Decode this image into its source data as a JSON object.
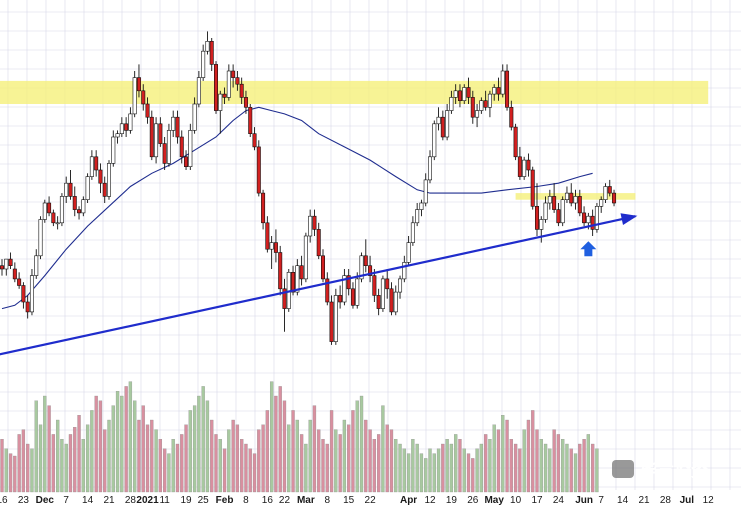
{
  "chart_data": {
    "type": "candlestick",
    "title": "",
    "xlabel": "",
    "ylabel": "",
    "grid": true,
    "legend": "none",
    "watermark": "毕肯投资",
    "colors": {
      "up": "#ffffff",
      "down": "#d22020",
      "candle_outline": "#111111",
      "ma_line": "#1f2d8f",
      "trendline": "#1f2ccc",
      "resistance_zone": "#f5f07a",
      "volume_up": "#a8c9a0",
      "volume_down": "#d890a0",
      "grid": "#d8d8e8",
      "marker_arrow": "#1f5fe0"
    },
    "x_axis_labels": [
      {
        "text": "16",
        "i": 0
      },
      {
        "text": "23",
        "i": 5
      },
      {
        "text": "Dec",
        "i": 10,
        "bold": true
      },
      {
        "text": "7",
        "i": 15
      },
      {
        "text": "14",
        "i": 20
      },
      {
        "text": "21",
        "i": 25
      },
      {
        "text": "28",
        "i": 30
      },
      {
        "text": "2021",
        "i": 34,
        "bold": true
      },
      {
        "text": "11",
        "i": 38
      },
      {
        "text": "19",
        "i": 43
      },
      {
        "text": "25",
        "i": 47
      },
      {
        "text": "Feb",
        "i": 52,
        "bold": true
      },
      {
        "text": "8",
        "i": 57
      },
      {
        "text": "16",
        "i": 62
      },
      {
        "text": "22",
        "i": 66
      },
      {
        "text": "Mar",
        "i": 71,
        "bold": true
      },
      {
        "text": "8",
        "i": 76
      },
      {
        "text": "15",
        "i": 81
      },
      {
        "text": "22",
        "i": 86
      },
      {
        "text": "Apr",
        "i": 95,
        "bold": true
      },
      {
        "text": "12",
        "i": 100
      },
      {
        "text": "19",
        "i": 105
      },
      {
        "text": "26",
        "i": 110
      },
      {
        "text": "May",
        "i": 115,
        "bold": true
      },
      {
        "text": "10",
        "i": 120
      },
      {
        "text": "17",
        "i": 125
      },
      {
        "text": "24",
        "i": 130
      },
      {
        "text": "Jun",
        "i": 136,
        "bold": true
      },
      {
        "text": "7",
        "i": 140
      },
      {
        "text": "14",
        "i": 145
      },
      {
        "text": "21",
        "i": 150
      },
      {
        "text": "28",
        "i": 155
      },
      {
        "text": "Jul",
        "i": 160,
        "bold": true
      },
      {
        "text": "12",
        "i": 165
      }
    ],
    "price_range": [
      0,
      100
    ],
    "volume_range": [
      0,
      100
    ],
    "candles": [
      [
        31,
        33,
        28,
        30
      ],
      [
        30,
        33,
        28,
        33
      ],
      [
        33,
        35,
        30,
        31
      ],
      [
        30,
        32,
        26,
        27
      ],
      [
        27,
        29,
        24,
        25
      ],
      [
        25,
        26,
        18,
        20
      ],
      [
        20,
        22,
        15,
        17
      ],
      [
        17,
        30,
        16,
        28
      ],
      [
        28,
        36,
        27,
        34
      ],
      [
        34,
        46,
        33,
        45
      ],
      [
        45,
        51,
        44,
        50
      ],
      [
        50,
        52,
        46,
        47
      ],
      [
        47,
        48,
        43,
        44
      ],
      [
        44,
        46,
        42,
        44
      ],
      [
        44,
        53,
        43,
        52
      ],
      [
        52,
        58,
        50,
        56
      ],
      [
        56,
        60,
        51,
        52
      ],
      [
        52,
        55,
        46,
        48
      ],
      [
        48,
        49,
        45,
        47
      ],
      [
        47,
        52,
        46,
        51
      ],
      [
        51,
        59,
        50,
        58
      ],
      [
        58,
        66,
        57,
        64
      ],
      [
        64,
        66,
        58,
        60
      ],
      [
        60,
        62,
        53,
        56
      ],
      [
        56,
        58,
        50,
        52
      ],
      [
        52,
        63,
        51,
        62
      ],
      [
        62,
        72,
        61,
        70
      ],
      [
        70,
        72,
        68,
        71
      ],
      [
        71,
        76,
        70,
        74
      ],
      [
        74,
        76,
        70,
        72
      ],
      [
        72,
        79,
        71,
        77
      ],
      [
        77,
        90,
        76,
        88
      ],
      [
        88,
        92,
        82,
        84
      ],
      [
        84,
        86,
        78,
        80
      ],
      [
        80,
        82,
        74,
        76
      ],
      [
        76,
        78,
        63,
        64
      ],
      [
        64,
        76,
        62,
        74
      ],
      [
        74,
        76,
        67,
        68
      ],
      [
        68,
        70,
        60,
        62
      ],
      [
        62,
        74,
        61,
        72
      ],
      [
        72,
        78,
        70,
        76
      ],
      [
        76,
        78,
        68,
        70
      ],
      [
        70,
        72,
        62,
        64
      ],
      [
        64,
        66,
        60,
        61
      ],
      [
        61,
        74,
        60,
        72
      ],
      [
        72,
        82,
        71,
        80
      ],
      [
        80,
        90,
        79,
        88
      ],
      [
        88,
        98,
        87,
        96
      ],
      [
        96,
        102,
        95,
        99
      ],
      [
        99,
        100,
        90,
        92
      ],
      [
        92,
        93,
        77,
        78
      ],
      [
        78,
        84,
        71,
        83
      ],
      [
        83,
        85,
        80,
        82
      ],
      [
        82,
        92,
        81,
        90
      ],
      [
        90,
        92,
        85,
        88
      ],
      [
        88,
        90,
        84,
        86
      ],
      [
        86,
        88,
        80,
        82
      ],
      [
        82,
        84,
        77,
        79
      ],
      [
        79,
        80,
        70,
        71
      ],
      [
        71,
        73,
        66,
        67
      ],
      [
        67,
        69,
        52,
        53
      ],
      [
        53,
        54,
        42,
        44
      ],
      [
        44,
        46,
        35,
        36
      ],
      [
        36,
        40,
        30,
        38
      ],
      [
        38,
        42,
        32,
        35
      ],
      [
        35,
        37,
        22,
        24
      ],
      [
        24,
        27,
        11,
        18
      ],
      [
        18,
        30,
        17,
        29
      ],
      [
        29,
        31,
        22,
        23
      ],
      [
        23,
        33,
        22,
        31
      ],
      [
        31,
        34,
        25,
        27
      ],
      [
        27,
        41,
        26,
        40
      ],
      [
        40,
        48,
        38,
        46
      ],
      [
        46,
        48,
        40,
        42
      ],
      [
        42,
        44,
        33,
        34
      ],
      [
        34,
        36,
        26,
        27
      ],
      [
        27,
        29,
        19,
        20
      ],
      [
        20,
        22,
        7,
        8
      ],
      [
        8,
        24,
        7,
        22
      ],
      [
        22,
        25,
        18,
        20
      ],
      [
        20,
        30,
        19,
        28
      ],
      [
        28,
        30,
        22,
        24
      ],
      [
        24,
        26,
        18,
        19
      ],
      [
        19,
        29,
        18,
        27
      ],
      [
        27,
        35,
        26,
        34
      ],
      [
        34,
        39,
        29,
        31
      ],
      [
        31,
        34,
        26,
        28
      ],
      [
        28,
        30,
        20,
        22
      ],
      [
        22,
        24,
        16,
        18
      ],
      [
        18,
        28,
        17,
        27
      ],
      [
        27,
        30,
        21,
        24
      ],
      [
        24,
        26,
        16,
        17
      ],
      [
        17,
        25,
        16,
        23
      ],
      [
        23,
        28,
        21,
        27
      ],
      [
        27,
        34,
        26,
        32
      ],
      [
        32,
        40,
        31,
        38
      ],
      [
        38,
        46,
        37,
        44
      ],
      [
        44,
        50,
        43,
        48
      ],
      [
        48,
        51,
        46,
        50
      ],
      [
        50,
        59,
        49,
        57
      ],
      [
        57,
        66,
        56,
        64
      ],
      [
        64,
        75,
        63,
        74
      ],
      [
        74,
        79,
        72,
        76
      ],
      [
        76,
        78,
        69,
        70
      ],
      [
        70,
        80,
        69,
        78
      ],
      [
        78,
        84,
        77,
        82
      ],
      [
        82,
        86,
        80,
        84
      ],
      [
        84,
        86,
        79,
        81
      ],
      [
        81,
        86,
        80,
        85
      ],
      [
        85,
        88,
        80,
        82
      ],
      [
        82,
        84,
        74,
        76
      ],
      [
        76,
        80,
        73,
        78
      ],
      [
        78,
        82,
        77,
        81
      ],
      [
        81,
        84,
        78,
        79
      ],
      [
        79,
        84,
        76,
        83
      ],
      [
        83,
        86,
        81,
        85
      ],
      [
        85,
        88,
        81,
        83
      ],
      [
        83,
        92,
        82,
        90
      ],
      [
        90,
        92,
        78,
        79
      ],
      [
        79,
        81,
        72,
        73
      ],
      [
        73,
        74,
        63,
        64
      ],
      [
        64,
        67,
        57,
        58
      ],
      [
        58,
        64,
        57,
        63
      ],
      [
        63,
        65,
        58,
        60
      ],
      [
        60,
        61,
        48,
        49
      ],
      [
        49,
        56,
        40,
        42
      ],
      [
        42,
        46,
        38,
        45
      ],
      [
        45,
        52,
        44,
        50
      ],
      [
        50,
        54,
        48,
        52
      ],
      [
        52,
        56,
        47,
        48
      ],
      [
        48,
        50,
        43,
        44
      ],
      [
        44,
        52,
        43,
        51
      ],
      [
        51,
        55,
        50,
        53
      ],
      [
        53,
        56,
        49,
        50
      ],
      [
        50,
        54,
        48,
        52
      ],
      [
        52,
        54,
        46,
        47
      ],
      [
        47,
        49,
        43,
        44
      ],
      [
        44,
        47,
        42,
        46
      ],
      [
        46,
        48,
        40,
        42
      ],
      [
        42,
        50,
        41,
        49
      ],
      [
        49,
        52,
        47,
        51
      ],
      [
        51,
        56,
        50,
        55
      ],
      [
        55,
        57,
        52,
        53
      ],
      [
        53,
        54,
        49,
        50
      ]
    ],
    "ma_line": [
      [
        0,
        18
      ],
      [
        3,
        19
      ],
      [
        6,
        22
      ],
      [
        10,
        28
      ],
      [
        15,
        36
      ],
      [
        20,
        43
      ],
      [
        25,
        49
      ],
      [
        30,
        55
      ],
      [
        35,
        59
      ],
      [
        40,
        62
      ],
      [
        45,
        66
      ],
      [
        50,
        70
      ],
      [
        54,
        75
      ],
      [
        57,
        78
      ],
      [
        60,
        79
      ],
      [
        63,
        78
      ],
      [
        66,
        77
      ],
      [
        70,
        75
      ],
      [
        74,
        71
      ],
      [
        80,
        67
      ],
      [
        86,
        63
      ],
      [
        92,
        58
      ],
      [
        97,
        54
      ],
      [
        100,
        53
      ],
      [
        106,
        53
      ],
      [
        112,
        53
      ],
      [
        118,
        54
      ],
      [
        125,
        55
      ],
      [
        130,
        56
      ],
      [
        135,
        58
      ],
      [
        138,
        59
      ]
    ],
    "trendline": {
      "from": [
        -1,
        4
      ],
      "to": [
        148,
        46
      ]
    },
    "resistance_zones": [
      {
        "x_from": -1,
        "x_to": 165,
        "y_from": 80,
        "y_to": 87
      },
      {
        "x_from": 120,
        "x_to": 148,
        "y_from": 51,
        "y_to": 53
      }
    ],
    "marker_arrow_at": [
      137,
      36
    ],
    "volume": [
      22,
      18,
      16,
      15,
      24,
      26,
      20,
      18,
      38,
      28,
      40,
      36,
      24,
      30,
      22,
      20,
      24,
      27,
      32,
      22,
      28,
      34,
      40,
      38,
      26,
      30,
      36,
      42,
      40,
      44,
      46,
      38,
      30,
      36,
      28,
      30,
      26,
      22,
      18,
      16,
      22,
      20,
      24,
      28,
      34,
      36,
      40,
      44,
      38,
      30,
      24,
      22,
      18,
      26,
      30,
      28,
      22,
      20,
      18,
      16,
      26,
      28,
      34,
      46,
      40,
      44,
      38,
      28,
      34,
      30,
      24,
      20,
      30,
      36,
      26,
      22,
      20,
      34,
      26,
      24,
      30,
      28,
      34,
      38,
      40,
      30,
      26,
      22,
      24,
      36,
      28,
      26,
      22,
      20,
      18,
      16,
      22,
      20,
      16,
      14,
      18,
      16,
      18,
      20,
      22,
      20,
      24,
      22,
      18,
      16,
      14,
      18,
      20,
      24,
      22,
      28,
      26,
      32,
      30,
      22,
      20,
      18,
      26,
      30,
      34,
      26,
      22,
      20,
      18,
      26,
      24,
      22,
      20,
      18,
      16,
      20,
      22,
      24,
      20,
      18
    ]
  }
}
